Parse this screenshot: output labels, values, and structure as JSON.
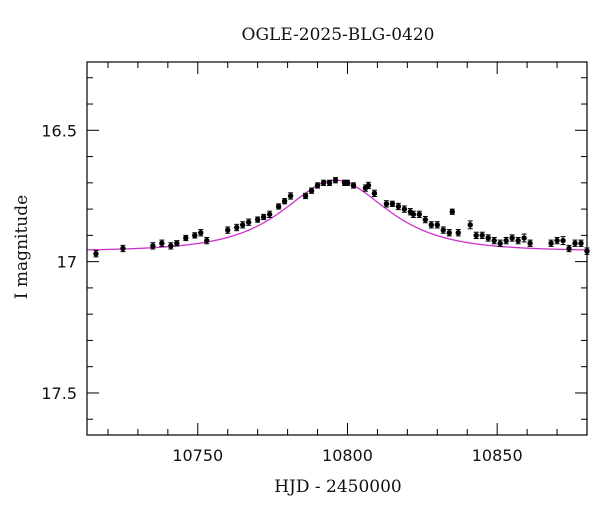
{
  "chart_data": {
    "type": "scatter",
    "title": "OGLE-2025-BLG-0420",
    "xlabel": "HJD - 2450000",
    "ylabel": "I magnitude",
    "xlim": [
      10713,
      10880
    ],
    "ylim": [
      17.66,
      16.24
    ],
    "y_inverted": true,
    "xticks": [
      10750,
      10800,
      10850
    ],
    "xtick_labels": [
      "10750",
      "10800",
      "10850"
    ],
    "yticks": [
      16.5,
      17,
      17.5
    ],
    "ytick_labels": [
      "16.5",
      "17",
      "17.5"
    ],
    "grid": false,
    "colors": {
      "points": "#000000",
      "model": "#cc33cc",
      "frame": "#000000"
    },
    "series": [
      {
        "kind": "points",
        "x": [
          10716,
          10725,
          10735,
          10738,
          10741,
          10743,
          10746,
          10749,
          10751,
          10753,
          10760,
          10763,
          10765,
          10767,
          10770,
          10772,
          10774,
          10777,
          10779,
          10781,
          10786,
          10788,
          10790,
          10792,
          10794,
          10796,
          10799,
          10800,
          10802,
          10806,
          10807,
          10809,
          10813,
          10815,
          10817,
          10819,
          10821,
          10822,
          10824,
          10826,
          10828,
          10830,
          10832,
          10834,
          10835,
          10837,
          10841,
          10843,
          10845,
          10847,
          10849,
          10851,
          10853,
          10855,
          10857,
          10859,
          10861,
          10868,
          10870,
          10872,
          10874,
          10876,
          10878,
          10880
        ],
        "y": [
          16.97,
          16.95,
          16.94,
          16.93,
          16.94,
          16.93,
          16.91,
          16.9,
          16.89,
          16.92,
          16.88,
          16.87,
          16.86,
          16.85,
          16.84,
          16.83,
          16.82,
          16.79,
          16.77,
          16.75,
          16.75,
          16.73,
          16.71,
          16.7,
          16.7,
          16.69,
          16.7,
          16.7,
          16.71,
          16.72,
          16.71,
          16.74,
          16.78,
          16.78,
          16.79,
          16.8,
          16.81,
          16.82,
          16.82,
          16.84,
          16.86,
          16.86,
          16.88,
          16.89,
          16.81,
          16.89,
          16.86,
          16.9,
          16.9,
          16.91,
          16.92,
          16.93,
          16.92,
          16.91,
          16.92,
          16.91,
          16.93,
          16.93,
          16.92,
          16.92,
          16.95,
          16.93,
          16.93,
          16.96
        ],
        "yerr": [
          0.012,
          0.012,
          0.012,
          0.012,
          0.012,
          0.01,
          0.01,
          0.01,
          0.012,
          0.012,
          0.012,
          0.012,
          0.012,
          0.012,
          0.01,
          0.01,
          0.012,
          0.01,
          0.01,
          0.012,
          0.01,
          0.01,
          0.01,
          0.01,
          0.01,
          0.01,
          0.01,
          0.01,
          0.01,
          0.012,
          0.012,
          0.012,
          0.012,
          0.01,
          0.012,
          0.012,
          0.012,
          0.012,
          0.012,
          0.012,
          0.012,
          0.012,
          0.012,
          0.012,
          0.01,
          0.012,
          0.015,
          0.012,
          0.012,
          0.012,
          0.012,
          0.012,
          0.012,
          0.012,
          0.012,
          0.015,
          0.012,
          0.012,
          0.012,
          0.015,
          0.012,
          0.012,
          0.012,
          0.012
        ]
      },
      {
        "kind": "model",
        "baseline": 16.96,
        "peak": 16.69,
        "t0": 10796,
        "tE": 19.5
      }
    ]
  }
}
